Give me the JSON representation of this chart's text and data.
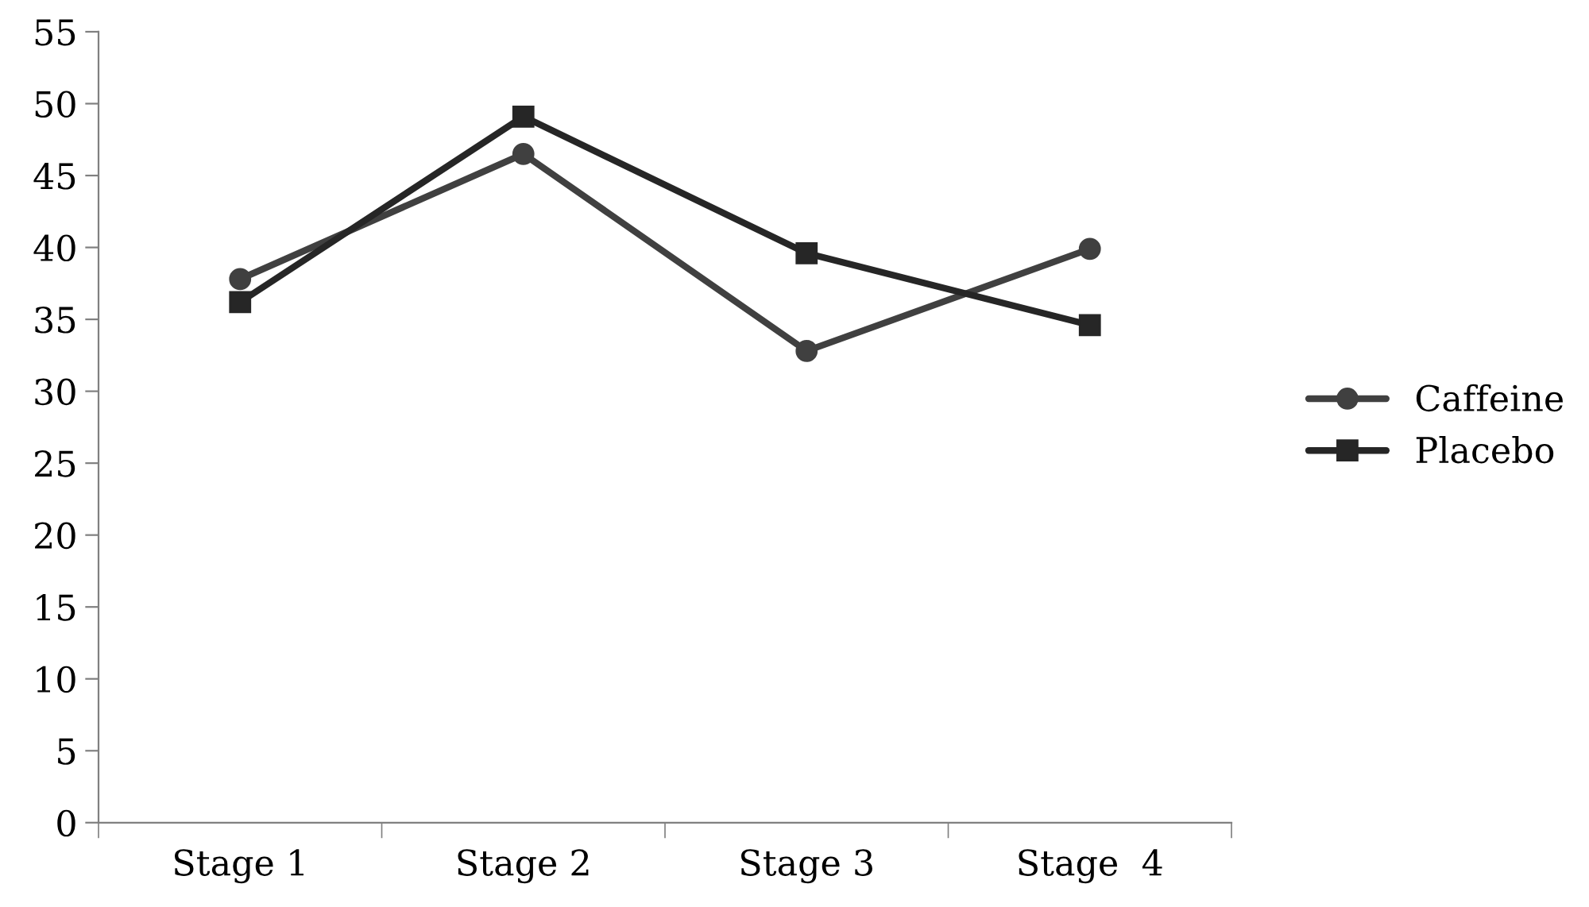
{
  "chart_data": {
    "type": "line",
    "categories": [
      "Stage 1",
      "Stage 2",
      "Stage 3",
      "Stage  4"
    ],
    "series": [
      {
        "name": "Caffeine",
        "color": "#404040",
        "values": [
          37.8,
          46.5,
          32.8,
          39.9
        ],
        "marker": "circle"
      },
      {
        "name": "Placebo",
        "color": "#262626",
        "values": [
          36.2,
          49.1,
          39.6,
          34.6
        ],
        "marker": "square"
      }
    ],
    "ylim": [
      0,
      55
    ],
    "yticks": [
      0,
      5,
      10,
      15,
      20,
      25,
      30,
      35,
      40,
      45,
      50,
      55
    ],
    "grid": false,
    "legend": "right",
    "line_style": "solid"
  }
}
